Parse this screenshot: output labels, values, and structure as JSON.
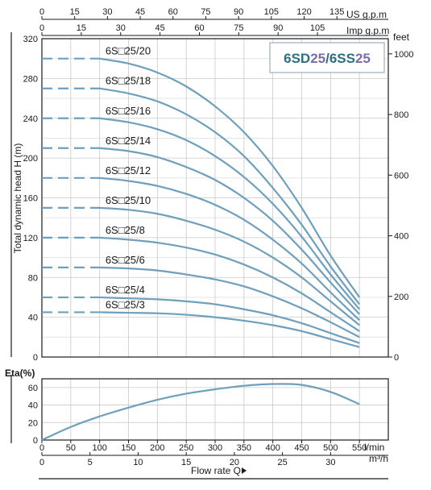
{
  "chart_data": [
    {
      "type": "line",
      "title": "",
      "model": {
        "part1": "6SD",
        "part2": "25",
        "sep": "/6SS",
        "part4": "25"
      },
      "colors": {
        "curve": "#6e9fbc",
        "model_dark": "#2c6f83",
        "model_accent": "#7a6bb0"
      },
      "ylabel": "Total dynamic head H (m)",
      "y2label": "feet",
      "xlabel": "Flow rate Q",
      "x_unit": "l/min",
      "x_m3h_unit": "m³/h",
      "x_usgpm_unit": "US g.p.m",
      "x_impgpm_unit": "Imp g.p.m",
      "xlim": [
        0,
        600
      ],
      "ylim": [
        0,
        320
      ],
      "y2lim_feet": [
        0,
        1050
      ],
      "grid": true,
      "x_ticks": [
        "0",
        "50",
        "100",
        "150",
        "200",
        "250",
        "300",
        "350",
        "400",
        "450",
        "500",
        "550"
      ],
      "x_tick_values": [
        0,
        50,
        100,
        150,
        200,
        250,
        300,
        350,
        400,
        450,
        500,
        550
      ],
      "y_ticks": [
        "0",
        "40",
        "80",
        "120",
        "160",
        "200",
        "240",
        "280",
        "320"
      ],
      "y_tick_values": [
        0,
        40,
        80,
        120,
        160,
        200,
        240,
        280,
        320
      ],
      "y2_ticks": [
        "0",
        "200",
        "400",
        "600",
        "800",
        "1000"
      ],
      "y2_tick_values": [
        0,
        200,
        400,
        600,
        800,
        1000
      ],
      "m3h_ticks": [
        "0",
        "5",
        "10",
        "15",
        "20",
        "25",
        "30"
      ],
      "m3h_tick_values": [
        0,
        5,
        10,
        15,
        20,
        25,
        30
      ],
      "usgpm_ticks": [
        "0",
        "15",
        "30",
        "45",
        "60",
        "75",
        "90",
        "105",
        "120",
        "135"
      ],
      "usgpm_tick_values": [
        0,
        15,
        30,
        45,
        60,
        75,
        90,
        105,
        120,
        135
      ],
      "impgpm_ticks": [
        "0",
        "15",
        "30",
        "45",
        "60",
        "75",
        "90",
        "105"
      ],
      "impgpm_tick_values": [
        0,
        15,
        30,
        45,
        60,
        75,
        90,
        105
      ],
      "series": [
        {
          "name": "6S□25/20",
          "dashed_to": 100,
          "x": [
            0,
            100,
            150,
            200,
            250,
            300,
            350,
            400,
            450,
            500,
            550
          ],
          "y": [
            300,
            300,
            295,
            286,
            272,
            252,
            226,
            192,
            150,
            102,
            60
          ]
        },
        {
          "name": "6S□25/18",
          "dashed_to": 100,
          "x": [
            0,
            100,
            150,
            200,
            250,
            300,
            350,
            400,
            450,
            500,
            550
          ],
          "y": [
            270,
            270,
            265,
            257,
            244,
            226,
            202,
            170,
            133,
            91,
            53
          ]
        },
        {
          "name": "6S□25/16",
          "dashed_to": 100,
          "x": [
            0,
            100,
            150,
            200,
            250,
            300,
            350,
            400,
            450,
            500,
            550
          ],
          "y": [
            240,
            240,
            236,
            229,
            218,
            202,
            181,
            154,
            121,
            83,
            48
          ]
        },
        {
          "name": "6S□25/14",
          "dashed_to": 100,
          "x": [
            0,
            100,
            150,
            200,
            250,
            300,
            350,
            400,
            450,
            500,
            550
          ],
          "y": [
            210,
            210,
            207,
            201,
            191,
            178,
            160,
            137,
            108,
            75,
            43
          ]
        },
        {
          "name": "6S□25/12",
          "dashed_to": 100,
          "x": [
            0,
            100,
            150,
            200,
            250,
            300,
            350,
            400,
            450,
            500,
            550
          ],
          "y": [
            180,
            180,
            177,
            172,
            164,
            153,
            138,
            118,
            94,
            65,
            37
          ]
        },
        {
          "name": "6S□25/10",
          "dashed_to": 100,
          "x": [
            0,
            100,
            150,
            200,
            250,
            300,
            350,
            400,
            450,
            500,
            550
          ],
          "y": [
            150,
            150,
            148,
            144,
            137,
            128,
            116,
            100,
            80,
            56,
            32
          ]
        },
        {
          "name": "6S□25/8",
          "dashed_to": 100,
          "x": [
            0,
            100,
            150,
            200,
            250,
            300,
            350,
            400,
            450,
            500,
            550
          ],
          "y": [
            120,
            120,
            118,
            115,
            110,
            103,
            93,
            80,
            64,
            45,
            26
          ]
        },
        {
          "name": "6S□25/6",
          "dashed_to": 100,
          "x": [
            0,
            100,
            150,
            200,
            250,
            300,
            350,
            400,
            450,
            500,
            550
          ],
          "y": [
            90,
            90,
            89,
            87,
            83,
            78,
            71,
            61,
            49,
            35,
            20
          ]
        },
        {
          "name": "6S□25/4",
          "dashed_to": 100,
          "x": [
            0,
            100,
            150,
            200,
            250,
            300,
            350,
            400,
            450,
            500,
            550
          ],
          "y": [
            60,
            60,
            59,
            58,
            56,
            53,
            48,
            42,
            34,
            24,
            14
          ]
        },
        {
          "name": "6S□25/3",
          "dashed_to": 100,
          "x": [
            0,
            100,
            150,
            200,
            250,
            300,
            350,
            400,
            450,
            500,
            550
          ],
          "y": [
            45,
            45,
            44.5,
            44,
            42.5,
            40,
            36.5,
            32,
            26,
            18,
            10
          ]
        }
      ]
    },
    {
      "type": "line",
      "title": "",
      "ylabel": "Eta(%)",
      "xlim": [
        0,
        600
      ],
      "ylim": [
        0,
        70
      ],
      "grid": true,
      "y_ticks": [
        "0",
        "20",
        "40",
        "60"
      ],
      "y_tick_values": [
        0,
        20,
        40,
        60
      ],
      "series": [
        {
          "name": "",
          "x": [
            0,
            50,
            100,
            150,
            200,
            250,
            300,
            350,
            400,
            450,
            500,
            550
          ],
          "y": [
            0,
            15,
            27,
            37,
            46,
            53,
            58,
            62,
            64,
            63,
            55,
            41
          ]
        }
      ]
    }
  ]
}
